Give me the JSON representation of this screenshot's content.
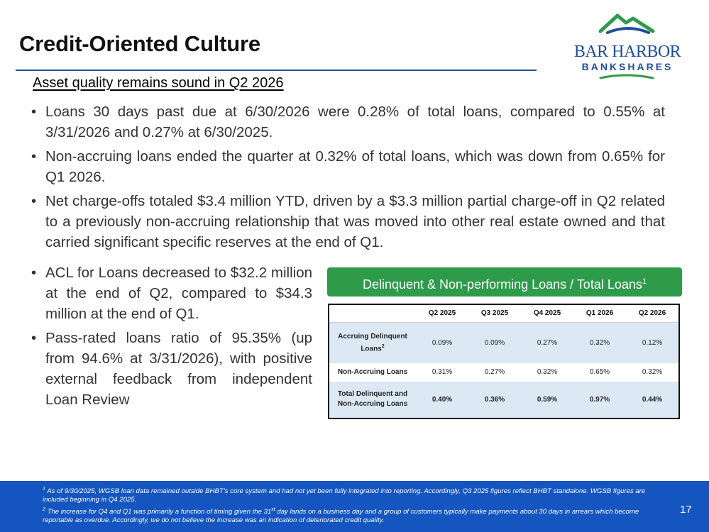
{
  "slide": {
    "title": "Credit-Oriented Culture",
    "subheading": "Asset quality remains sound in Q2 2026",
    "page_number": "17"
  },
  "logo": {
    "line1": "BAR HARBOR",
    "line2": "BANKSHARES"
  },
  "bullets": [
    "Loans 30 days past due at 6/30/2026 were 0.28% of total loans, compared to 0.55% at 3/31/2026 and 0.27% at 6/30/2025.",
    "Non-accruing loans ended the quarter at 0.32% of total loans, which was down from 0.65% for Q1 2026.",
    "Net charge-offs totaled $3.4 million YTD, driven by a $3.3 million partial charge-off in Q2 related to a previously non-accruing relationship that was moved into other real estate owned and that carried significant specific reserves at the end of Q1."
  ],
  "bullets_left": [
    "ACL for Loans decreased to $32.2 million at the end of Q2, compared to $34.3 million at the end of Q1.",
    "Pass-rated loans ratio of 95.35% (up from 94.6% at 3/31/2026), with positive external feedback from independent Loan Review"
  ],
  "table": {
    "header": "Delinquent & Non-performing Loans / Total Loans",
    "header_sup": "1",
    "columns": [
      "Q2 2025",
      "Q3 2025",
      "Q4 2025",
      "Q1 2026",
      "Q2 2026"
    ],
    "rows": [
      {
        "label": "Accruing Delinquent Loans",
        "label_sup": "2",
        "values": [
          "0.09%",
          "0.09%",
          "0.27%",
          "0.32%",
          "0.12%"
        ]
      },
      {
        "label": "Non-Accruing Loans",
        "values": [
          "0.31%",
          "0.27%",
          "0.32%",
          "0.65%",
          "0.32%"
        ]
      },
      {
        "label": "Total Delinquent and Non-Accruing Loans",
        "values": [
          "0.40%",
          "0.36%",
          "0.59%",
          "0.97%",
          "0.44%"
        ]
      }
    ]
  },
  "footnotes": {
    "fn1_mark": "1",
    "fn1_text": "As of 9/30/2025, WGSB loan data remained outside BHBT’s core system and had not yet been fully integrated into reporting. Accordingly, Q3 2025 figures reflect BHBT standalone. WGSB figures are included beginning in Q4 2025.",
    "fn2_mark": "2",
    "fn2_text_a": "The increase for Q4 and Q1 was primarily a function of timing given the 31",
    "fn2_text_sup": "st",
    "fn2_text_b": "day lands on a business day and a group of customers typically make payments about 30 days in arrears which become reportable as overdue. Accordingly, we do not believe the increase was an indication of deteriorated credit quality."
  },
  "colors": {
    "brand_blue": "#1f4e9b",
    "logo_green": "#2e9b4a",
    "footer_blue": "#1555c0",
    "table_shade": "#dde8f5"
  }
}
